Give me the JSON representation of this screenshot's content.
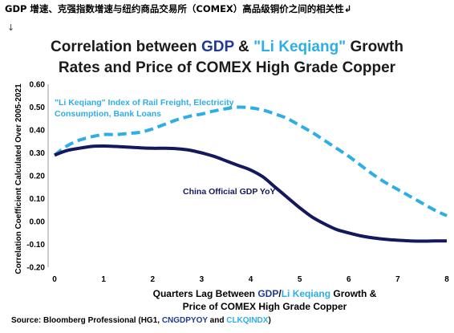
{
  "doc_heading": "GDP 增速、克强指数增速与纽约商品交易所（COMEX）高品级铜价之间的相关性↲",
  "return_mark": "↓",
  "title": {
    "line1_a": "Correlation between ",
    "line1_gdp": "GDP",
    "line1_b": " & ",
    "line1_lk": "\"Li Keqiang\"",
    "line1_c": " Growth",
    "line2": "Rates and Price of COMEX High Grade Copper"
  },
  "xlabel": {
    "a": "Quarters Lag Between ",
    "gdp": "GDP",
    "slash": "/",
    "lk": "Li Keqiang",
    "b": " Growth &",
    "line2": "Price of COMEX High Grade Copper"
  },
  "source": {
    "a": "Source: Bloomberg Professional (HG1, ",
    "b": "CNGDPYOY",
    "c": " and ",
    "d": "CLKQINDX",
    "e": ")"
  },
  "colors": {
    "gdp_series": "#14195e",
    "lk_series": "#2eaee6",
    "gdp_text": "#1f3a93"
  },
  "chart_data": {
    "type": "line",
    "title": "Correlation between GDP & \"Li Keqiang\" Growth Rates and Price of COMEX High Grade Copper",
    "xlabel": "Quarters Lag Between GDP/Li Keqiang Growth & Price of COMEX High Grade Copper",
    "ylabel": "Correlation Coefficient Calculated Over 2005-2021",
    "xlim": [
      0,
      8
    ],
    "ylim": [
      -0.2,
      0.6
    ],
    "x_ticks": [
      "0",
      "1",
      "2",
      "3",
      "4",
      "5",
      "6",
      "7",
      "8"
    ],
    "y_ticks": [
      "-0.20",
      "-0.10",
      "0.00",
      "0.10",
      "0.20",
      "0.30",
      "0.40",
      "0.50",
      "0.60"
    ],
    "grid": false,
    "series": [
      {
        "name": "\"Li Keqiang\"  Index of Rail Freight, Electricity Consumption,  Bank Loans",
        "style": "dashed",
        "x": [
          0,
          0.25,
          0.5,
          0.75,
          1,
          1.25,
          1.5,
          1.75,
          2,
          2.25,
          2.5,
          2.75,
          3,
          3.25,
          3.5,
          3.75,
          4,
          4.25,
          4.5,
          4.75,
          5,
          5.25,
          5.5,
          5.75,
          6,
          6.25,
          6.5,
          6.75,
          7,
          7.25,
          7.5,
          7.75,
          8
        ],
        "y": [
          0.29,
          0.33,
          0.355,
          0.37,
          0.38,
          0.38,
          0.385,
          0.39,
          0.405,
          0.425,
          0.445,
          0.46,
          0.47,
          0.483,
          0.493,
          0.5,
          0.497,
          0.487,
          0.47,
          0.45,
          0.42,
          0.39,
          0.355,
          0.32,
          0.285,
          0.245,
          0.205,
          0.17,
          0.14,
          0.11,
          0.08,
          0.05,
          0.025
        ]
      },
      {
        "name": "China Official GDP YoY",
        "style": "solid",
        "x": [
          0,
          0.25,
          0.5,
          0.75,
          1,
          1.25,
          1.5,
          1.75,
          2,
          2.25,
          2.5,
          2.75,
          3,
          3.25,
          3.5,
          3.75,
          4,
          4.25,
          4.5,
          4.75,
          5,
          5.25,
          5.5,
          5.75,
          6,
          6.25,
          6.5,
          6.75,
          7,
          7.25,
          7.5,
          7.75,
          8
        ],
        "y": [
          0.29,
          0.31,
          0.32,
          0.328,
          0.33,
          0.328,
          0.325,
          0.322,
          0.32,
          0.32,
          0.318,
          0.312,
          0.3,
          0.285,
          0.265,
          0.245,
          0.225,
          0.195,
          0.15,
          0.105,
          0.06,
          0.02,
          -0.01,
          -0.035,
          -0.05,
          -0.063,
          -0.072,
          -0.078,
          -0.082,
          -0.085,
          -0.086,
          -0.085,
          -0.085
        ]
      }
    ]
  }
}
